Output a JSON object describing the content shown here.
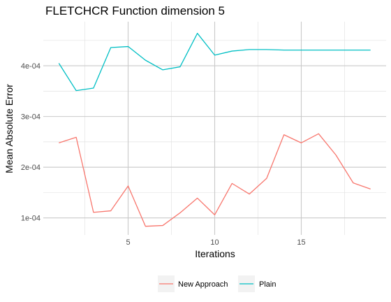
{
  "chart_data": {
    "type": "line",
    "title": "FLETCHCR Function dimension 5",
    "xlabel": "Iterations",
    "ylabel": "Mean Absolute Error",
    "xlim": [
      0.1,
      19.9
    ],
    "ylim": [
      6.65e-05,
      0.000487
    ],
    "x_ticks": [
      5,
      10,
      15
    ],
    "x_minor_ticks": [
      2.5,
      7.5,
      12.5,
      17.5
    ],
    "y_ticks": [
      0.0001,
      0.0002,
      0.0003,
      0.0004
    ],
    "y_tick_labels": [
      "1e-04",
      "2e-04",
      "3e-04",
      "4e-04"
    ],
    "y_minor_ticks": [
      0.00015,
      0.00025,
      0.00035,
      0.00045
    ],
    "grid": true,
    "legend_position": "bottom",
    "x": [
      1,
      2,
      3,
      4,
      5,
      6,
      7,
      8,
      9,
      10,
      11,
      12,
      13,
      14,
      15,
      16,
      17,
      18,
      19
    ],
    "series": [
      {
        "name": "New Approach",
        "color": "#f8766d",
        "values": [
          0.000248,
          0.000259,
          0.000111,
          0.000114,
          0.000163,
          8.35e-05,
          8.5e-05,
          0.00011,
          0.000139,
          0.000106,
          0.000168,
          0.000147,
          0.000178,
          0.000264,
          0.000248,
          0.000266,
          0.000224,
          0.000169,
          0.000157
        ]
      },
      {
        "name": "Plain",
        "color": "#00bfc4",
        "values": [
          0.000405,
          0.000351,
          0.000356,
          0.000436,
          0.000438,
          0.000411,
          0.000392,
          0.000398,
          0.000464,
          0.000421,
          0.000429,
          0.000432,
          0.000432,
          0.000431,
          0.000431,
          0.000431,
          0.000431,
          0.000431,
          0.000431
        ]
      }
    ]
  }
}
